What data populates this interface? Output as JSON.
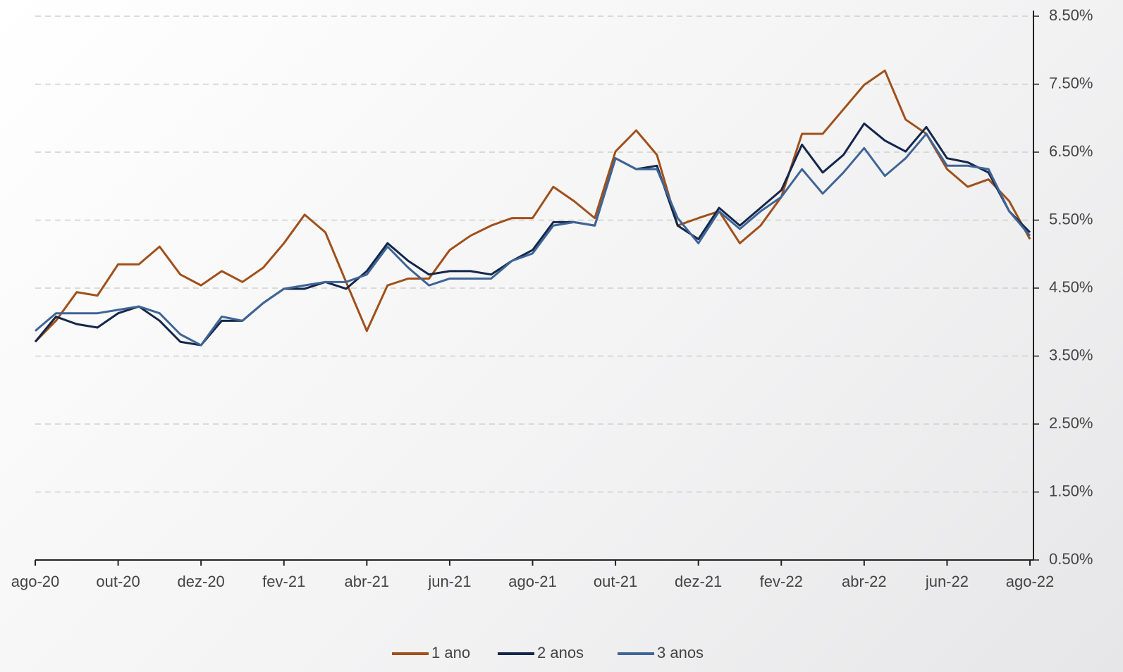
{
  "chart_data": {
    "type": "line",
    "categories": [
      "ago-20",
      null,
      null,
      null,
      "out-20",
      null,
      null,
      null,
      "dez-20",
      null,
      null,
      null,
      "fev-21",
      null,
      null,
      null,
      "abr-21",
      null,
      null,
      null,
      "jun-21",
      null,
      null,
      null,
      "ago-21",
      null,
      null,
      null,
      "out-21",
      null,
      null,
      null,
      "dez-21",
      null,
      null,
      null,
      "fev-22",
      null,
      null,
      null,
      "abr-22",
      null,
      null,
      null,
      "jun-22",
      null,
      null,
      null,
      "ago-22"
    ],
    "series": [
      {
        "name": "1 ano",
        "color": "#a0501a",
        "values": [
          3.71,
          4.02,
          4.44,
          4.39,
          4.85,
          4.85,
          5.11,
          4.7,
          4.54,
          4.75,
          4.59,
          4.8,
          5.16,
          5.58,
          5.32,
          4.59,
          3.87,
          4.54,
          4.64,
          4.64,
          5.06,
          5.27,
          5.42,
          5.53,
          5.53,
          5.99,
          5.78,
          5.53,
          6.51,
          6.82,
          6.46,
          5.42,
          5.53,
          5.63,
          5.16,
          5.42,
          5.84,
          6.77,
          6.77,
          7.13,
          7.49,
          7.7,
          6.98,
          6.77,
          6.25,
          5.99,
          6.1,
          5.78,
          5.22
        ]
      },
      {
        "name": "2 anos",
        "color": "#14264a",
        "values": [
          3.71,
          4.08,
          3.97,
          3.92,
          4.13,
          4.23,
          4.02,
          3.71,
          3.66,
          4.02,
          4.02,
          4.28,
          4.49,
          4.49,
          4.59,
          4.49,
          4.75,
          5.16,
          4.9,
          4.7,
          4.75,
          4.75,
          4.7,
          4.9,
          5.06,
          5.47,
          5.47,
          5.42,
          6.41,
          6.25,
          6.3,
          5.42,
          5.22,
          5.68,
          5.42,
          5.68,
          5.94,
          6.61,
          6.2,
          6.46,
          6.92,
          6.67,
          6.51,
          6.87,
          6.41,
          6.35,
          6.2,
          5.63,
          5.32
        ]
      },
      {
        "name": "3 anos",
        "color": "#3f6597",
        "values": [
          3.87,
          4.13,
          4.13,
          4.13,
          4.18,
          4.23,
          4.13,
          3.82,
          3.66,
          4.08,
          4.02,
          4.28,
          4.49,
          4.54,
          4.59,
          4.59,
          4.7,
          5.11,
          4.8,
          4.54,
          4.64,
          4.64,
          4.64,
          4.9,
          5.01,
          5.42,
          5.47,
          5.42,
          6.41,
          6.25,
          6.25,
          5.53,
          5.16,
          5.63,
          5.37,
          5.63,
          5.84,
          6.25,
          5.89,
          6.2,
          6.56,
          6.15,
          6.41,
          6.77,
          6.3,
          6.3,
          6.25,
          5.63,
          5.27
        ]
      }
    ],
    "ylim": [
      0.5,
      8.5
    ],
    "yticks": [
      {
        "value": 0.5,
        "label": "0.50%"
      },
      {
        "value": 1.5,
        "label": "1.50%"
      },
      {
        "value": 2.5,
        "label": "2.50%"
      },
      {
        "value": 3.5,
        "label": "3.50%"
      },
      {
        "value": 4.5,
        "label": "4.50%"
      },
      {
        "value": 5.5,
        "label": "5.50%"
      },
      {
        "value": 6.5,
        "label": "6.50%"
      },
      {
        "value": 7.5,
        "label": "7.50%"
      },
      {
        "value": 8.5,
        "label": "8.50%"
      }
    ],
    "grid": true,
    "legend": "bottom"
  }
}
